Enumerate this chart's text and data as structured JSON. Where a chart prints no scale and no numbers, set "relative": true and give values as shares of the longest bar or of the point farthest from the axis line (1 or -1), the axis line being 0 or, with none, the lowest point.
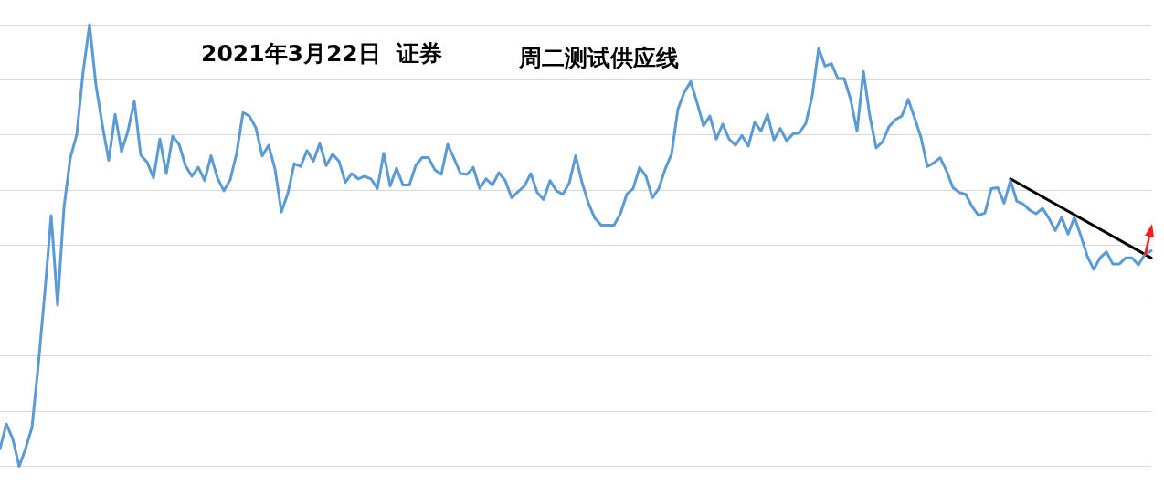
{
  "chart_data": {
    "type": "line",
    "title": "2021年3月22日  证券",
    "subtitle": "周二测试供应线",
    "relative": true,
    "grid": "y",
    "legend": false,
    "marker": "none",
    "categories": [
      null,
      null,
      null,
      null,
      null,
      null,
      null,
      null,
      null,
      null,
      null,
      null,
      null,
      null,
      null,
      null,
      null,
      null,
      null,
      null,
      null,
      null,
      null,
      null,
      null,
      null,
      null,
      null,
      null,
      null,
      null,
      null,
      null,
      null,
      null,
      null,
      null,
      null,
      null,
      null,
      null,
      null,
      null,
      null,
      null,
      null,
      null,
      null,
      null,
      null,
      null,
      null,
      null,
      null,
      null,
      null,
      null,
      null,
      null,
      null,
      null,
      null,
      null,
      null,
      null,
      null,
      null,
      null,
      null,
      null,
      null,
      null,
      null,
      null,
      null,
      null,
      null,
      null,
      null,
      null,
      null,
      null,
      null,
      null,
      null,
      null,
      null,
      null,
      null,
      null,
      null,
      null,
      null,
      null,
      null,
      null,
      null,
      null,
      null,
      null,
      null,
      null,
      null,
      null,
      null,
      null,
      null,
      null,
      null,
      null,
      null,
      null,
      null,
      null,
      null,
      null,
      null,
      null,
      null,
      null,
      null,
      null,
      null,
      null,
      null,
      null,
      null,
      null,
      null,
      null,
      null,
      null,
      null,
      null,
      null,
      null,
      null,
      null,
      null,
      null,
      null,
      null,
      null,
      null,
      null,
      null,
      null,
      null,
      null,
      null,
      null,
      null,
      null,
      null,
      null,
      null,
      null,
      null,
      null,
      null,
      null,
      null,
      null,
      null,
      null,
      null,
      null,
      null,
      null,
      null,
      null,
      null,
      null,
      null,
      null,
      null,
      null,
      null,
      null,
      null,
      null
    ],
    "series": [
      {
        "color": "#5b9bd5",
        "line_style": "solid",
        "values": [
          0.04,
          0.096,
          0.062,
          0,
          0.04,
          0.088,
          0.231,
          0.392,
          0.568,
          0.365,
          0.586,
          0.699,
          0.751,
          0.894,
          1,
          0.863,
          0.773,
          0.693,
          0.797,
          0.713,
          0.759,
          0.827,
          0.705,
          0.689,
          0.653,
          0.741,
          0.663,
          0.747,
          0.729,
          0.681,
          0.657,
          0.677,
          0.647,
          0.703,
          0.653,
          0.624,
          0.649,
          0.709,
          0.801,
          0.793,
          0.767,
          0.703,
          0.727,
          0.673,
          0.576,
          0.618,
          0.685,
          0.679,
          0.715,
          0.691,
          0.731,
          0.681,
          0.707,
          0.691,
          0.643,
          0.663,
          0.651,
          0.657,
          0.651,
          0.629,
          0.709,
          0.635,
          0.675,
          0.637,
          0.637,
          0.681,
          0.699,
          0.699,
          0.671,
          0.661,
          0.729,
          0.697,
          0.663,
          0.661,
          0.677,
          0.629,
          0.651,
          0.637,
          0.665,
          0.647,
          0.608,
          0.622,
          0.635,
          0.663,
          0.62,
          0.604,
          0.647,
          0.624,
          0.616,
          0.641,
          0.703,
          0.643,
          0.596,
          0.562,
          0.546,
          0.546,
          0.546,
          0.572,
          0.616,
          0.629,
          0.677,
          0.657,
          0.608,
          0.629,
          0.673,
          0.707,
          0.809,
          0.847,
          0.871,
          0.823,
          0.771,
          0.793,
          0.741,
          0.775,
          0.741,
          0.727,
          0.749,
          0.725,
          0.779,
          0.759,
          0.797,
          0.739,
          0.765,
          0.737,
          0.753,
          0.755,
          0.777,
          0.839,
          0.946,
          0.906,
          0.912,
          0.878,
          0.878,
          0.831,
          0.759,
          0.894,
          0.793,
          0.721,
          0.735,
          0.769,
          0.785,
          0.793,
          0.831,
          0.789,
          0.745,
          0.679,
          0.687,
          0.699,
          0.669,
          0.631,
          0.62,
          0.616,
          0.588,
          0.568,
          0.574,
          0.629,
          0.631,
          0.596,
          0.647,
          0.6,
          0.594,
          0.58,
          0.572,
          0.584,
          0.562,
          0.534,
          0.564,
          0.526,
          0.564,
          0.522,
          0.476,
          0.446,
          0.472,
          0.486,
          0.458,
          0.458,
          0.472,
          0.472,
          0.456,
          0.48,
          0.488
        ]
      },
      {
        "type": "line",
        "color": "#000000",
        "line_style": "solid",
        "values": [
          null,
          null,
          null,
          null,
          null,
          null,
          null,
          null,
          null,
          null,
          null,
          null,
          null,
          null,
          null,
          null,
          null,
          null,
          null,
          null,
          null,
          null,
          null,
          null,
          null,
          null,
          null,
          null,
          null,
          null,
          null,
          null,
          null,
          null,
          null,
          null,
          null,
          null,
          null,
          null,
          null,
          null,
          null,
          null,
          null,
          null,
          null,
          null,
          null,
          null,
          null,
          null,
          null,
          null,
          null,
          null,
          null,
          null,
          null,
          null,
          null,
          null,
          null,
          null,
          null,
          null,
          null,
          null,
          null,
          null,
          null,
          null,
          null,
          null,
          null,
          null,
          null,
          null,
          null,
          null,
          null,
          null,
          null,
          null,
          null,
          null,
          null,
          null,
          null,
          null,
          null,
          null,
          null,
          null,
          null,
          null,
          null,
          null,
          null,
          null,
          null,
          null,
          null,
          null,
          null,
          null,
          null,
          null,
          null,
          null,
          null,
          null,
          null,
          null,
          null,
          null,
          null,
          null,
          null,
          null,
          null,
          null,
          null,
          null,
          null,
          null,
          null,
          null,
          null,
          null,
          null,
          null,
          null,
          null,
          null,
          null,
          null,
          null,
          null,
          null,
          null,
          null,
          null,
          null,
          null,
          null,
          null,
          null,
          null,
          null,
          null,
          null,
          null,
          null,
          null,
          null,
          null,
          null,
          0.651,
          null,
          null,
          null,
          null,
          null,
          null,
          null,
          null,
          null,
          null,
          null,
          null,
          null,
          null,
          null,
          null,
          null,
          null,
          null,
          null,
          null,
          0.472
        ]
      }
    ]
  }
}
